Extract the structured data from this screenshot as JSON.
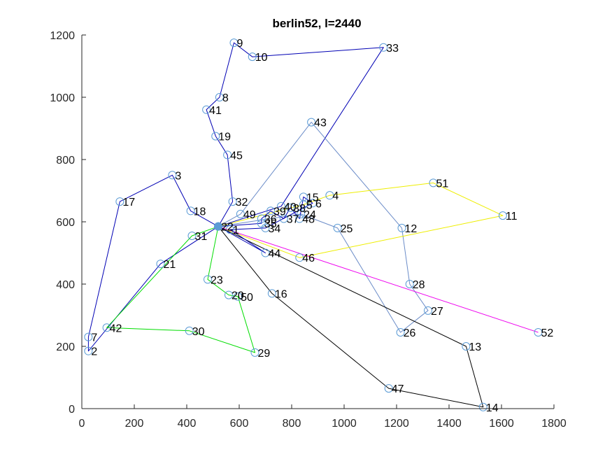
{
  "chart_data": {
    "type": "scatter",
    "title": "berlin52,   l=2440",
    "xlabel": "",
    "ylabel": "",
    "xlim": [
      0,
      1800
    ],
    "ylim": [
      0,
      1200
    ],
    "xticks": [
      0,
      200,
      400,
      600,
      800,
      1000,
      1200,
      1400,
      1600,
      1800
    ],
    "yticks": [
      0,
      200,
      400,
      600,
      800,
      1000,
      1200
    ],
    "grid": false,
    "depot": 22,
    "marker_color": "#5b9bd5",
    "cities": [
      {
        "id": 1,
        "x": 565,
        "y": 575
      },
      {
        "id": 2,
        "x": 25,
        "y": 185
      },
      {
        "id": 3,
        "x": 345,
        "y": 750
      },
      {
        "id": 4,
        "x": 945,
        "y": 685
      },
      {
        "id": 5,
        "x": 845,
        "y": 655
      },
      {
        "id": 6,
        "x": 880,
        "y": 660
      },
      {
        "id": 7,
        "x": 25,
        "y": 230
      },
      {
        "id": 8,
        "x": 525,
        "y": 1000
      },
      {
        "id": 9,
        "x": 580,
        "y": 1175
      },
      {
        "id": 10,
        "x": 650,
        "y": 1130
      },
      {
        "id": 11,
        "x": 1605,
        "y": 620
      },
      {
        "id": 12,
        "x": 1220,
        "y": 580
      },
      {
        "id": 13,
        "x": 1465,
        "y": 200
      },
      {
        "id": 14,
        "x": 1530,
        "y": 5
      },
      {
        "id": 15,
        "x": 845,
        "y": 680
      },
      {
        "id": 16,
        "x": 725,
        "y": 370
      },
      {
        "id": 17,
        "x": 145,
        "y": 665
      },
      {
        "id": 18,
        "x": 415,
        "y": 635
      },
      {
        "id": 19,
        "x": 510,
        "y": 875
      },
      {
        "id": 20,
        "x": 560,
        "y": 365
      },
      {
        "id": 21,
        "x": 300,
        "y": 465
      },
      {
        "id": 22,
        "x": 520,
        "y": 585
      },
      {
        "id": 23,
        "x": 480,
        "y": 415
      },
      {
        "id": 24,
        "x": 835,
        "y": 625
      },
      {
        "id": 25,
        "x": 975,
        "y": 580
      },
      {
        "id": 26,
        "x": 1215,
        "y": 245
      },
      {
        "id": 27,
        "x": 1320,
        "y": 315
      },
      {
        "id": 28,
        "x": 1250,
        "y": 400
      },
      {
        "id": 29,
        "x": 660,
        "y": 180
      },
      {
        "id": 30,
        "x": 410,
        "y": 250
      },
      {
        "id": 31,
        "x": 420,
        "y": 555
      },
      {
        "id": 32,
        "x": 575,
        "y": 665
      },
      {
        "id": 33,
        "x": 1150,
        "y": 1160
      },
      {
        "id": 34,
        "x": 700,
        "y": 580
      },
      {
        "id": 35,
        "x": 685,
        "y": 595
      },
      {
        "id": 36,
        "x": 685,
        "y": 610
      },
      {
        "id": 37,
        "x": 770,
        "y": 610
      },
      {
        "id": 38,
        "x": 795,
        "y": 645
      },
      {
        "id": 39,
        "x": 720,
        "y": 635
      },
      {
        "id": 40,
        "x": 760,
        "y": 650
      },
      {
        "id": 41,
        "x": 475,
        "y": 960
      },
      {
        "id": 42,
        "x": 95,
        "y": 260
      },
      {
        "id": 43,
        "x": 875,
        "y": 920
      },
      {
        "id": 44,
        "x": 700,
        "y": 500
      },
      {
        "id": 45,
        "x": 555,
        "y": 815
      },
      {
        "id": 46,
        "x": 830,
        "y": 485
      },
      {
        "id": 47,
        "x": 1170,
        "y": 65
      },
      {
        "id": 48,
        "x": 830,
        "y": 610
      },
      {
        "id": 49,
        "x": 605,
        "y": 625
      },
      {
        "id": 50,
        "x": 595,
        "y": 360
      },
      {
        "id": 51,
        "x": 1340,
        "y": 725
      },
      {
        "id": 52,
        "x": 1740,
        "y": 245
      }
    ],
    "routes": [
      {
        "color": "#0000b4",
        "cities": [
          22,
          18,
          3,
          17,
          7,
          2,
          21,
          22
        ]
      },
      {
        "color": "#0000b4",
        "cities": [
          22,
          32,
          45,
          19,
          41,
          8,
          9,
          10,
          33,
          40,
          22
        ]
      },
      {
        "color": "#00dd00",
        "cities": [
          22,
          31,
          42,
          30,
          29,
          50,
          20,
          23,
          22
        ]
      },
      {
        "color": "#6b8cc8",
        "cities": [
          22,
          49,
          43,
          12,
          28,
          27,
          26,
          25,
          24,
          22
        ]
      },
      {
        "color": "#eeee00",
        "cities": [
          22,
          5,
          4,
          51,
          11,
          46,
          22
        ]
      },
      {
        "color": "#000000",
        "cities": [
          22,
          16,
          47,
          14,
          13,
          22
        ]
      },
      {
        "color": "#ee00ee",
        "cities": [
          22,
          52
        ]
      },
      {
        "color": "#0000b4",
        "cities": [
          22,
          35,
          36,
          39,
          37,
          38,
          48,
          15,
          6,
          34,
          1,
          44,
          22
        ]
      }
    ]
  }
}
